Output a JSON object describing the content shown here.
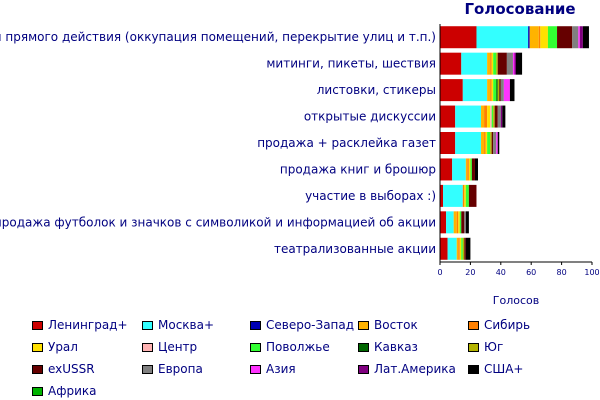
{
  "chart_data": {
    "type": "bar",
    "orientation": "horizontal",
    "stacked": true,
    "title": "Голосование",
    "xlabel": "Голосов",
    "xlim": [
      0,
      100
    ],
    "xticks": [
      "0",
      "20",
      "40",
      "60",
      "80",
      "100"
    ],
    "categories": [
      "акции прямого действия (оккупация помещений, перекрытие улиц и т.п.)",
      "митинги, пикеты, шествия",
      "листовки, стикеры",
      "открытые дискуссии",
      "продажа + расклейка газет",
      "продажа книг и брошюр",
      "участие в выборах :)",
      "продажа футболок и значков с символикой и информацией об акции",
      "театрализованные акции"
    ],
    "series": [
      {
        "name": "Ленинград+",
        "color": "#cc0000",
        "values": [
          24,
          14,
          15,
          10,
          10,
          8,
          2,
          4,
          5
        ]
      },
      {
        "name": "Москва+",
        "color": "#33ffff",
        "values": [
          34,
          17,
          16,
          17,
          17,
          9,
          13,
          5,
          6
        ]
      },
      {
        "name": "Северо-Запад",
        "color": "#0000b3",
        "values": [
          1,
          0,
          0,
          0,
          0,
          0,
          0,
          0,
          0
        ]
      },
      {
        "name": "Восток",
        "color": "#ffb300",
        "values": [
          6,
          2,
          2,
          2,
          2,
          1,
          0,
          2,
          1
        ]
      },
      {
        "name": "Сибирь",
        "color": "#ff8000",
        "values": [
          1,
          1,
          1,
          2,
          1,
          1,
          1,
          1,
          1
        ]
      },
      {
        "name": "Урал",
        "color": "#ffe000",
        "values": [
          5,
          1,
          1,
          2,
          1,
          1,
          1,
          1,
          1
        ]
      },
      {
        "name": "Центр",
        "color": "#ffb3b3",
        "values": [
          0,
          0,
          0,
          1,
          0,
          0,
          0,
          0,
          0
        ]
      },
      {
        "name": "Поволжье",
        "color": "#33ff33",
        "values": [
          6,
          2,
          2,
          1,
          2,
          1,
          2,
          1,
          1
        ]
      },
      {
        "name": "Кавказ",
        "color": "#006600",
        "values": [
          0,
          0,
          1,
          0,
          0,
          0,
          0,
          0,
          0
        ]
      },
      {
        "name": "Юг",
        "color": "#b3b300",
        "values": [
          0,
          1,
          1,
          1,
          1,
          0,
          0,
          0,
          1
        ]
      },
      {
        "name": "exUSSR",
        "color": "#660000",
        "values": [
          10,
          6,
          1,
          2,
          1,
          2,
          5,
          2,
          1
        ]
      },
      {
        "name": "Европа",
        "color": "#808080",
        "values": [
          4,
          4,
          2,
          2,
          2,
          0,
          0,
          1,
          0
        ]
      },
      {
        "name": "Азия",
        "color": "#ff33ff",
        "values": [
          1,
          1,
          4,
          0,
          1,
          0,
          0,
          0,
          0
        ]
      },
      {
        "name": "Лат.Америка",
        "color": "#800080",
        "values": [
          2,
          1,
          0,
          1,
          0,
          0,
          0,
          0,
          0
        ]
      },
      {
        "name": "США+",
        "color": "#000000",
        "values": [
          4,
          4,
          3,
          2,
          1,
          2,
          0,
          2,
          3
        ]
      },
      {
        "name": "Африка",
        "color": "#00b300",
        "values": [
          0,
          0,
          0,
          0,
          0,
          0,
          0,
          0,
          0
        ]
      }
    ]
  }
}
